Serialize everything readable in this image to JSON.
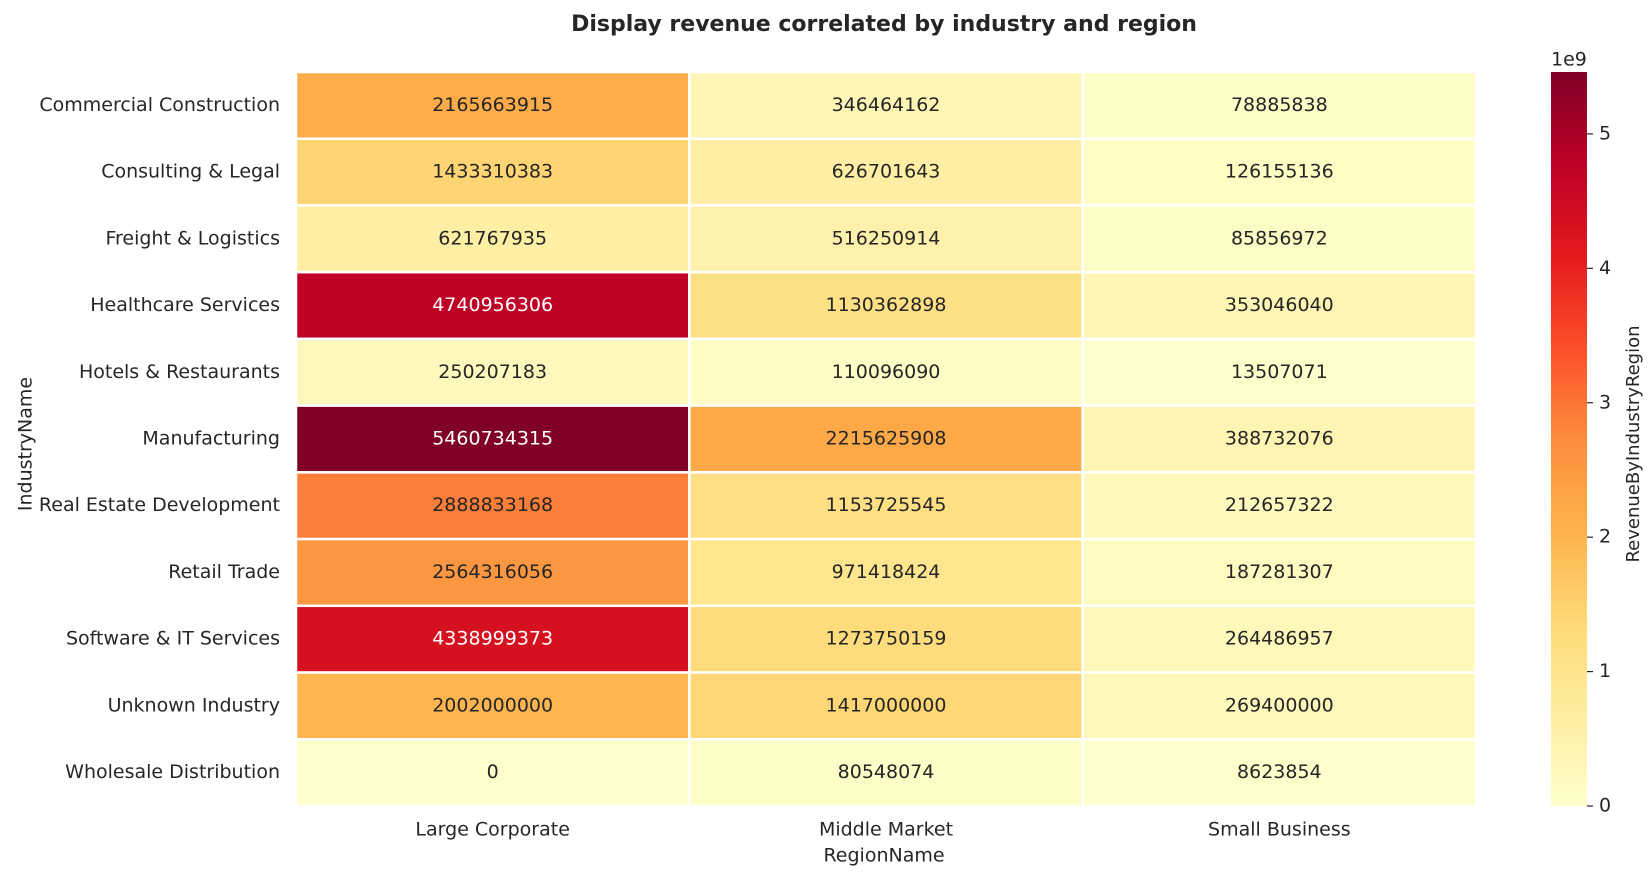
{
  "chart_data": {
    "type": "heatmap",
    "title": "Display revenue correlated by industry and region",
    "xlabel": "RegionName",
    "ylabel": "IndustryName",
    "colorbar_label": "RevenueByIndustryRegion",
    "colorbar_offset_label": "1e9",
    "colorbar_ticks": [
      "0",
      "1",
      "2",
      "3",
      "4",
      "5"
    ],
    "colorbar_tick_values": [
      0,
      1000000000,
      2000000000,
      3000000000,
      4000000000,
      5000000000
    ],
    "vmin": 0,
    "vmax": 5460734315,
    "colormap": "YlOrRd",
    "columns": [
      "Large Corporate",
      "Middle Market",
      "Small Business"
    ],
    "rows": [
      "Commercial Construction",
      "Consulting & Legal",
      "Freight & Logistics",
      "Healthcare Services",
      "Hotels & Restaurants",
      "Manufacturing",
      "Real Estate Development",
      "Retail Trade",
      "Software & IT Services",
      "Unknown Industry",
      "Wholesale Distribution"
    ],
    "values": [
      [
        2165663915,
        346464162,
        78885838
      ],
      [
        1433310383,
        626701643,
        126155136
      ],
      [
        621767935,
        516250914,
        85856972
      ],
      [
        4740956306,
        1130362898,
        353046040
      ],
      [
        250207183,
        110096090,
        13507071
      ],
      [
        5460734315,
        2215625908,
        388732076
      ],
      [
        2888833168,
        1153725545,
        212657322
      ],
      [
        2564316056,
        971418424,
        187281307
      ],
      [
        4338999373,
        1273750159,
        264486957
      ],
      [
        2002000000,
        1417000000,
        269400000
      ],
      [
        0,
        80548074,
        8623854
      ]
    ],
    "grid": false,
    "legend": "colorbar-right"
  }
}
